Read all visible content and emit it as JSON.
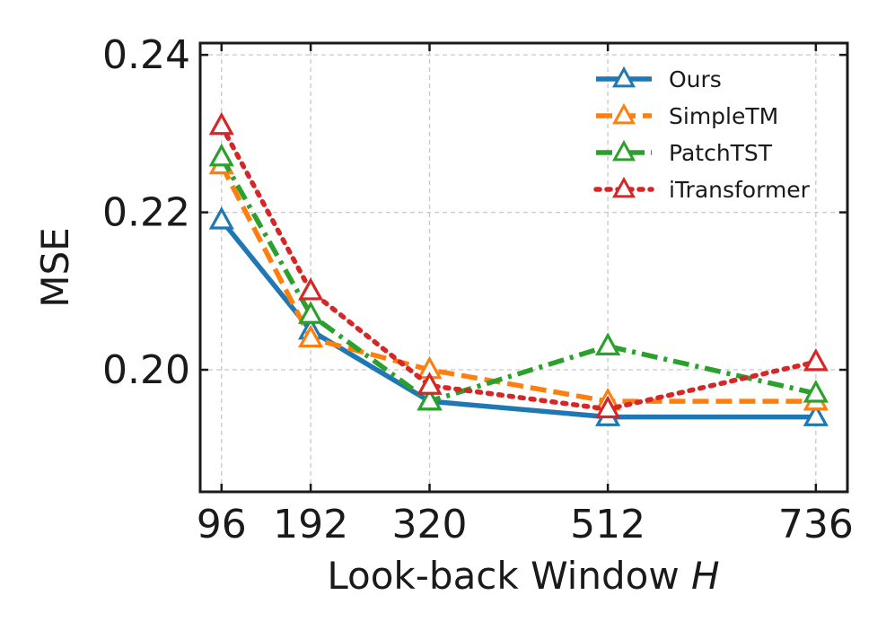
{
  "chart_data": {
    "type": "line",
    "x": [
      96,
      192,
      320,
      512,
      736
    ],
    "xticks": [
      "96",
      "192",
      "320",
      "512",
      "736"
    ],
    "yticks": [
      "0.20",
      "0.22",
      "0.24"
    ],
    "ytick_values": [
      0.2,
      0.22,
      0.24
    ],
    "xlim": [
      73,
      770
    ],
    "ylim": [
      0.1845,
      0.2415
    ],
    "xlabel": "Look-back Window",
    "xlabel_var": "H",
    "ylabel": "MSE",
    "grid": true,
    "legend_position": "top-right",
    "series": [
      {
        "name": "Ours",
        "color": "#1f77b4",
        "dash": "solid",
        "values": [
          0.219,
          0.205,
          0.196,
          0.194,
          0.194
        ]
      },
      {
        "name": "SimpleTM",
        "color": "#ff7f0e",
        "dash": "dashed",
        "values": [
          0.226,
          0.204,
          0.2,
          0.196,
          0.196
        ]
      },
      {
        "name": "PatchTST",
        "color": "#2ca02c",
        "dash": "dashdot",
        "values": [
          0.227,
          0.207,
          0.196,
          0.203,
          0.197
        ]
      },
      {
        "name": "iTransformer",
        "color": "#d62728",
        "dash": "dotted",
        "values": [
          0.231,
          0.21,
          0.198,
          0.195,
          0.201
        ]
      }
    ]
  }
}
